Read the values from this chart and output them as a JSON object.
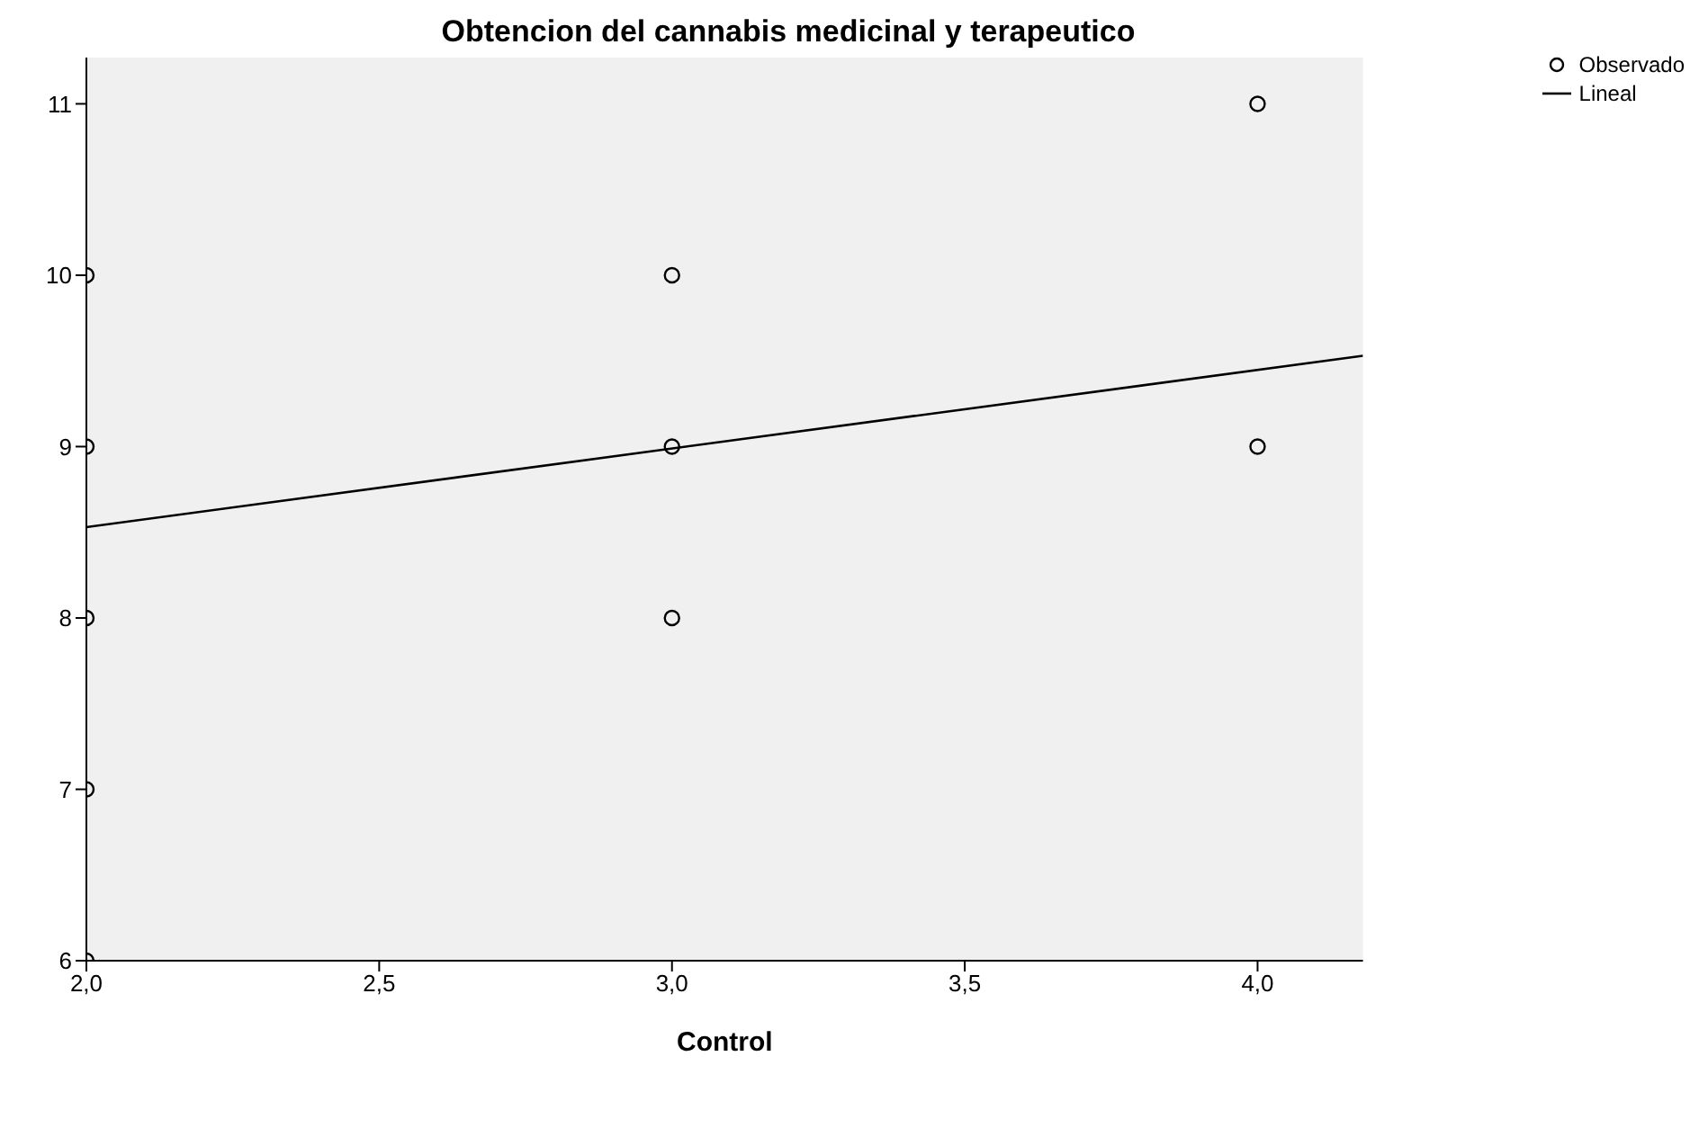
{
  "chart_data": {
    "type": "scatter",
    "title": "Obtencion del cannabis medicinal y terapeutico",
    "xlabel": "Control",
    "series": [
      {
        "name": "Observado",
        "color": "#000000",
        "marker": "circle",
        "x": [
          2,
          2,
          2,
          2,
          2,
          3,
          3,
          3,
          4,
          4
        ],
        "values": [
          10,
          9,
          8,
          7,
          6,
          10,
          9,
          8,
          11,
          9
        ]
      },
      {
        "name": "Lineal",
        "type": "line",
        "color": "#000000",
        "marker": "none",
        "line_style": "solid",
        "x": [
          2,
          4.18
        ],
        "values": [
          8.53,
          9.53
        ]
      }
    ],
    "xlim": [
      2,
      4.18
    ],
    "xticks": [
      {
        "value": 2,
        "label": "2,0"
      },
      {
        "value": 2.5,
        "label": "2,5"
      },
      {
        "value": 3,
        "label": "3,0"
      },
      {
        "value": 3.5,
        "label": "3,5"
      },
      {
        "value": 4,
        "label": "4,0"
      }
    ],
    "ylim": [
      6,
      11.27
    ],
    "yticks": [
      6,
      7,
      8,
      9,
      10,
      11
    ],
    "grid": false,
    "legend": "top right"
  }
}
